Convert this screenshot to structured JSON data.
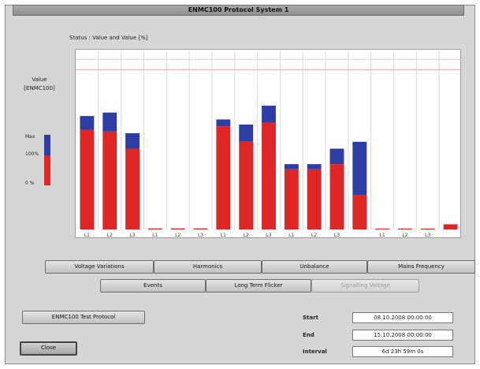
{
  "window": {
    "title": "ENMC100 Protocol System 1"
  },
  "chart_data": {
    "type": "bar",
    "title": "",
    "legend_text": "Status : Value and Value [%]",
    "ylabel": "Value\n[ENMC100]",
    "scale_labels": [
      "Max",
      "100%",
      "0 %"
    ],
    "ylim": [
      0,
      100
    ],
    "limit_line": 93,
    "groups": [
      {
        "labels": [
          "L1",
          "L2",
          "L3"
        ],
        "values": [
          [
            58,
            8
          ],
          [
            57,
            11
          ],
          [
            47,
            9
          ]
        ]
      },
      {
        "labels": [
          "L1",
          "L2",
          "L3"
        ],
        "values": [
          [
            0.6,
            0
          ],
          [
            0.6,
            0
          ],
          [
            0.6,
            0
          ]
        ]
      },
      {
        "labels": [
          "L1",
          "L2",
          "L3"
        ],
        "values": [
          [
            60,
            4
          ],
          [
            51,
            10
          ],
          [
            62,
            10
          ]
        ]
      },
      {
        "labels": [
          "L1",
          "L2",
          "L3"
        ],
        "values": [
          [
            35,
            3
          ],
          [
            35,
            3
          ],
          [
            38,
            9
          ]
        ]
      },
      {
        "labels": [
          ""
        ],
        "values": [
          [
            20,
            31
          ]
        ]
      },
      {
        "labels": [
          "L1",
          "L2",
          "L3"
        ],
        "values": [
          [
            0.5,
            0
          ],
          [
            0.5,
            0
          ],
          [
            0.5,
            0
          ]
        ]
      },
      {
        "labels": [
          ""
        ],
        "values": [
          [
            3,
            0
          ]
        ]
      }
    ],
    "colors": {
      "low": "#e02525",
      "high": "#2c3ea6"
    }
  },
  "buttons": {
    "row1": [
      "Voltage Variations",
      "Harmonics",
      "Unbalance",
      "Mains Frequency"
    ],
    "row2": [
      "Events",
      "Long Term Flicker",
      "Signalling Voltage"
    ],
    "test_protocol": "ENMC100 Test Protocol",
    "close": "Close"
  },
  "fields": {
    "start_label": "Start",
    "start_value": "08.10.2008  00:00:00",
    "end_label": "End",
    "end_value": "15.10.2008  00:00:00",
    "interval_label": "Interval",
    "interval_value": "6d 23h 59m 0s"
  }
}
